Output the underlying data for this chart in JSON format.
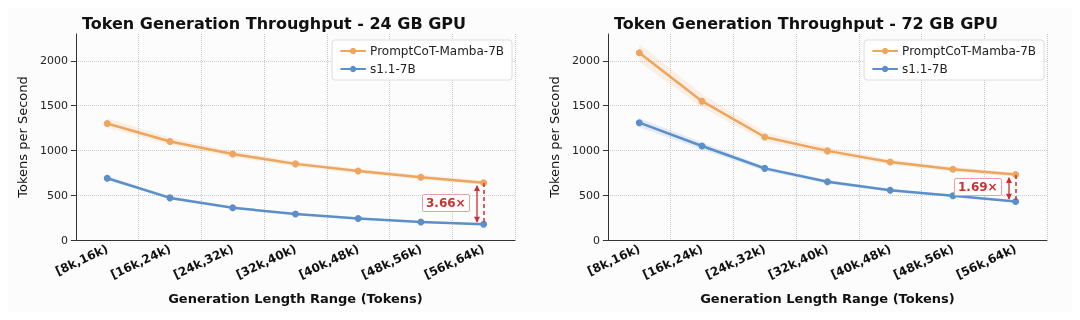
{
  "chart_data": [
    {
      "type": "line",
      "title": "Token Generation Throughput - 24 GB GPU",
      "xlabel": "Generation Length Range (Tokens)",
      "ylabel": "Tokens per Second",
      "categories": [
        "[8k,16k)",
        "[16k,24k)",
        "[24k,32k)",
        "[32k,40k)",
        "[40k,48k)",
        "[48k,56k)",
        "[56k,64k)"
      ],
      "series": [
        {
          "name": "PromptCoT-Mamba-7B",
          "color": "#eea55e",
          "values": [
            1300,
            1100,
            960,
            850,
            770,
            700,
            640
          ],
          "lower": [
            1250,
            1060,
            925,
            820,
            745,
            675,
            615
          ],
          "upper": [
            1360,
            1145,
            995,
            880,
            795,
            725,
            665
          ]
        },
        {
          "name": "s1.1-7B",
          "color": "#5b8fc9",
          "values": [
            690,
            470,
            360,
            290,
            240,
            200,
            175
          ],
          "lower": [
            670,
            455,
            350,
            280,
            232,
            193,
            168
          ],
          "upper": [
            715,
            490,
            372,
            300,
            248,
            208,
            183
          ]
        }
      ],
      "annotations": [
        "3.66×"
      ],
      "ylim": [
        0,
        2300
      ],
      "yticks": [
        0,
        500,
        1000,
        1500,
        2000
      ],
      "grid": true,
      "legend": "top right",
      "marker": "circle",
      "line_style": "solid"
    },
    {
      "type": "line",
      "title": "Token Generation Throughput - 72 GB GPU",
      "xlabel": "Generation Length Range (Tokens)",
      "ylabel": "Tokens per Second",
      "categories": [
        "[8k,16k)",
        "[16k,24k)",
        "[24k,32k)",
        "[32k,40k)",
        "[40k,48k)",
        "[48k,56k)",
        "[56k,64k)"
      ],
      "series": [
        {
          "name": "PromptCoT-Mamba-7B",
          "color": "#eea55e",
          "values": [
            2090,
            1550,
            1150,
            995,
            870,
            790,
            730
          ],
          "lower": [
            1990,
            1480,
            1100,
            955,
            840,
            765,
            705
          ],
          "upper": [
            2190,
            1630,
            1200,
            1035,
            900,
            815,
            755
          ]
        },
        {
          "name": "s1.1-7B",
          "color": "#5b8fc9",
          "values": [
            1310,
            1050,
            800,
            650,
            555,
            495,
            430
          ],
          "lower": [
            1260,
            1010,
            770,
            630,
            540,
            482,
            418
          ],
          "upper": [
            1360,
            1090,
            820,
            670,
            570,
            508,
            442
          ]
        }
      ],
      "annotations": [
        "1.69×"
      ],
      "ylim": [
        0,
        2300
      ],
      "yticks": [
        0,
        500,
        1000,
        1500,
        2000
      ],
      "grid": true,
      "legend": "top right",
      "marker": "circle",
      "line_style": "solid"
    }
  ]
}
